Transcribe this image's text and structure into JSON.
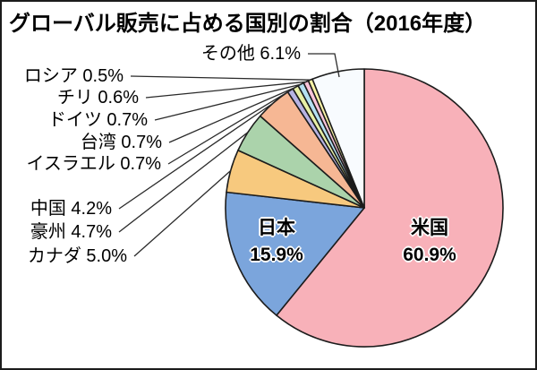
{
  "chart_data": {
    "type": "pie",
    "title": "グローバル販売に占める国別の割合（2016年度）",
    "unit": "%",
    "slices": [
      {
        "label": "米国",
        "value": 60.9,
        "pct_label": "60.9%",
        "color": "#f8b1b9",
        "label_style": "inside"
      },
      {
        "label": "日本",
        "value": 15.9,
        "pct_label": "15.9%",
        "color": "#7ba5dc",
        "label_style": "inside"
      },
      {
        "label": "カナダ",
        "value": 5.0,
        "pct_label": "5.0%",
        "color": "#f7c97e",
        "label_style": "leader"
      },
      {
        "label": "豪州",
        "value": 4.7,
        "pct_label": "4.7%",
        "color": "#abd3ab",
        "label_style": "leader"
      },
      {
        "label": "中国",
        "value": 4.2,
        "pct_label": "4.2%",
        "color": "#f6b794",
        "label_style": "leader"
      },
      {
        "label": "イスラエル",
        "value": 0.7,
        "pct_label": "0.7%",
        "color": "#b7b3e3",
        "label_style": "leader"
      },
      {
        "label": "台湾",
        "value": 0.7,
        "pct_label": "0.7%",
        "color": "#e7efa5",
        "label_style": "leader"
      },
      {
        "label": "ドイツ",
        "value": 0.7,
        "pct_label": "0.7%",
        "color": "#b4e0f2",
        "label_style": "leader"
      },
      {
        "label": "チリ",
        "value": 0.6,
        "pct_label": "0.6%",
        "color": "#f9c4da",
        "label_style": "leader"
      },
      {
        "label": "ロシア",
        "value": 0.5,
        "pct_label": "0.5%",
        "color": "#faf3a6",
        "label_style": "leader"
      },
      {
        "label": "その他",
        "value": 6.1,
        "pct_label": "6.1%",
        "color": "#f8fbfe",
        "label_style": "leader"
      }
    ],
    "layout": {
      "center": [
        405,
        230
      ],
      "radius": 155,
      "start_angle": "top",
      "direction": "clockwise",
      "stroke_color": "#1c1c1c",
      "stroke_width": 1.6,
      "leader_color": "#2a2a2a",
      "inside_label_centers": {
        "米国": [
          478,
          268
        ],
        "日本": [
          307,
          268
        ]
      },
      "leader_anchors": {
        "カナダ": {
          "from": [
            144,
            284
          ]
        },
        "豪州": {
          "from": [
            127,
            257
          ]
        },
        "中国": {
          "from": [
            127,
            231
          ]
        },
        "イスラエル": {
          "from": [
            182,
            181
          ]
        },
        "台湾": {
          "from": [
            183,
            157
          ]
        },
        "ドイツ": {
          "from": [
            167,
            132
          ]
        },
        "チリ": {
          "from": [
            157,
            107
          ]
        },
        "ロシア": {
          "from": [
            140,
            83
          ]
        },
        "その他": {
          "from": [
            338,
            58
          ],
          "via": [
            372,
            58
          ],
          "to": [
            377,
            84
          ]
        }
      }
    }
  }
}
